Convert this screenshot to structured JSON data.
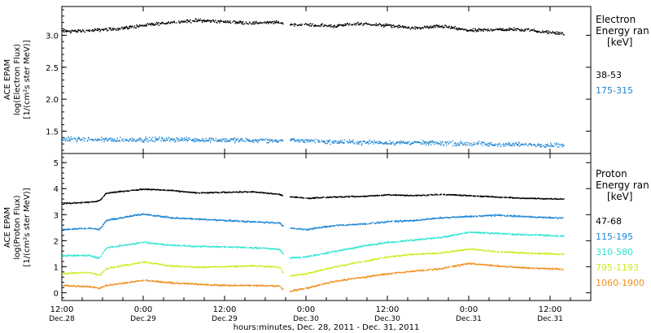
{
  "chart_data": [
    {
      "type": "scatter",
      "panel": "electron",
      "ylabel_lines": [
        "ACE EPAM",
        "log(Electron Flux)",
        "[1/(cm²s ster MeV)]"
      ],
      "ylim": [
        1.15,
        3.45
      ],
      "yticks": [
        1.5,
        2.0,
        2.5,
        3.0
      ],
      "ytick_labels": [
        "1.5",
        "2.0",
        "2.5",
        "3.0"
      ],
      "legend_title": [
        "Electron",
        "Energy ran",
        "[keV]"
      ],
      "gap": [
        44.6,
        45.6
      ],
      "series": [
        {
          "name": "38-53",
          "color": "#000000",
          "spread": 0.035,
          "points": [
            [
              12,
              3.07
            ],
            [
              16,
              3.08
            ],
            [
              20,
              3.11
            ],
            [
              24,
              3.16
            ],
            [
              28,
              3.21
            ],
            [
              32,
              3.24
            ],
            [
              36,
              3.22
            ],
            [
              40,
              3.2
            ],
            [
              44,
              3.21
            ],
            [
              45,
              3.18
            ],
            [
              48,
              3.17
            ],
            [
              52,
              3.15
            ],
            [
              56,
              3.19
            ],
            [
              60,
              3.16
            ],
            [
              64,
              3.12
            ],
            [
              68,
              3.15
            ],
            [
              72,
              3.08
            ],
            [
              76,
              3.1
            ],
            [
              80,
              3.1
            ],
            [
              84,
              3.05
            ],
            [
              86,
              3.03
            ]
          ]
        },
        {
          "name": "175-315",
          "color": "#1e86d4",
          "spread": 0.05,
          "points": [
            [
              12,
              1.38
            ],
            [
              20,
              1.37
            ],
            [
              28,
              1.38
            ],
            [
              36,
              1.37
            ],
            [
              44,
              1.36
            ],
            [
              45,
              1.37
            ],
            [
              52,
              1.34
            ],
            [
              60,
              1.33
            ],
            [
              68,
              1.32
            ],
            [
              76,
              1.3
            ],
            [
              86,
              1.29
            ]
          ]
        }
      ]
    },
    {
      "type": "scatter",
      "panel": "proton",
      "ylabel_lines": [
        "ACE EPAM",
        "log(Proton Flux)",
        "[1/(cm²s ster MeV)]"
      ],
      "ylim": [
        -0.3,
        5.35
      ],
      "yticks": [
        0,
        1,
        2,
        3,
        4,
        5
      ],
      "ytick_labels": [
        "0",
        "1",
        "2",
        "3",
        "4",
        "5"
      ],
      "legend_title": [
        "Proton",
        "Energy ran",
        "[keV]"
      ],
      "gap": [
        44.6,
        45.6
      ],
      "series": [
        {
          "name": "47-68",
          "color": "#000000",
          "spread": 0.03,
          "points": [
            [
              12,
              3.45
            ],
            [
              16,
              3.5
            ],
            [
              17.5,
              3.55
            ],
            [
              18.5,
              3.85
            ],
            [
              24,
              4.0
            ],
            [
              28,
              3.95
            ],
            [
              32,
              3.85
            ],
            [
              36,
              3.88
            ],
            [
              40,
              3.9
            ],
            [
              44,
              3.8
            ],
            [
              45,
              3.72
            ],
            [
              48,
              3.65
            ],
            [
              52,
              3.7
            ],
            [
              56,
              3.72
            ],
            [
              60,
              3.78
            ],
            [
              64,
              3.75
            ],
            [
              68,
              3.8
            ],
            [
              72,
              3.75
            ],
            [
              76,
              3.7
            ],
            [
              80,
              3.65
            ],
            [
              86,
              3.62
            ]
          ]
        },
        {
          "name": "115-195",
          "color": "#1e86d4",
          "spread": 0.04,
          "points": [
            [
              12,
              2.45
            ],
            [
              16,
              2.5
            ],
            [
              17.5,
              2.45
            ],
            [
              18.5,
              2.8
            ],
            [
              24,
              3.05
            ],
            [
              28,
              2.9
            ],
            [
              32,
              2.85
            ],
            [
              36,
              2.8
            ],
            [
              40,
              2.75
            ],
            [
              44,
              2.7
            ],
            [
              45,
              2.5
            ],
            [
              48,
              2.45
            ],
            [
              52,
              2.6
            ],
            [
              56,
              2.65
            ],
            [
              60,
              2.75
            ],
            [
              64,
              2.8
            ],
            [
              68,
              2.9
            ],
            [
              72,
              2.95
            ],
            [
              76,
              3.0
            ],
            [
              80,
              2.95
            ],
            [
              86,
              2.88
            ]
          ]
        },
        {
          "name": "310-580",
          "color": "#2ee6d2",
          "spread": 0.04,
          "points": [
            [
              12,
              1.45
            ],
            [
              16,
              1.45
            ],
            [
              17.5,
              1.35
            ],
            [
              18.5,
              1.75
            ],
            [
              24,
              1.95
            ],
            [
              28,
              1.85
            ],
            [
              32,
              1.8
            ],
            [
              36,
              1.78
            ],
            [
              40,
              1.75
            ],
            [
              44,
              1.7
            ],
            [
              45,
              1.35
            ],
            [
              48,
              1.4
            ],
            [
              52,
              1.6
            ],
            [
              56,
              1.8
            ],
            [
              60,
              1.95
            ],
            [
              64,
              2.05
            ],
            [
              68,
              2.15
            ],
            [
              72,
              2.35
            ],
            [
              76,
              2.3
            ],
            [
              80,
              2.25
            ],
            [
              86,
              2.2
            ]
          ]
        },
        {
          "name": "795-1193",
          "color": "#c8ee1e",
          "spread": 0.04,
          "points": [
            [
              12,
              0.75
            ],
            [
              16,
              0.8
            ],
            [
              17.5,
              0.7
            ],
            [
              18.5,
              0.95
            ],
            [
              24,
              1.2
            ],
            [
              28,
              1.05
            ],
            [
              32,
              1.0
            ],
            [
              36,
              1.02
            ],
            [
              40,
              1.05
            ],
            [
              44,
              1.0
            ],
            [
              45,
              0.65
            ],
            [
              48,
              0.75
            ],
            [
              52,
              1.0
            ],
            [
              56,
              1.2
            ],
            [
              60,
              1.4
            ],
            [
              64,
              1.5
            ],
            [
              68,
              1.55
            ],
            [
              72,
              1.7
            ],
            [
              76,
              1.6
            ],
            [
              80,
              1.55
            ],
            [
              86,
              1.5
            ]
          ]
        },
        {
          "name": "1060-1900",
          "color": "#f0901e",
          "spread": 0.04,
          "points": [
            [
              12,
              0.3
            ],
            [
              16,
              0.25
            ],
            [
              17.5,
              0.2
            ],
            [
              18.5,
              0.3
            ],
            [
              24,
              0.5
            ],
            [
              28,
              0.4
            ],
            [
              32,
              0.35
            ],
            [
              36,
              0.3
            ],
            [
              40,
              0.3
            ],
            [
              44,
              0.28
            ],
            [
              45,
              0.05
            ],
            [
              48,
              0.2
            ],
            [
              52,
              0.45
            ],
            [
              56,
              0.6
            ],
            [
              60,
              0.75
            ],
            [
              64,
              0.85
            ],
            [
              68,
              0.95
            ],
            [
              72,
              1.15
            ],
            [
              76,
              1.05
            ],
            [
              80,
              0.98
            ],
            [
              86,
              0.92
            ]
          ]
        }
      ]
    }
  ],
  "x_axis": {
    "xlim": [
      12,
      90
    ],
    "time_labels": [
      {
        "x": 12,
        "time": "12:00",
        "date": "Dec.28"
      },
      {
        "x": 24,
        "time": "0:00",
        "date": "Dec.29"
      },
      {
        "x": 36,
        "time": "12:00",
        "date": "Dec.29"
      },
      {
        "x": 48,
        "time": "0:00",
        "date": "Dec.30"
      },
      {
        "x": 60,
        "time": "12:00",
        "date": "Dec.30"
      },
      {
        "x": 72,
        "time": "0:00",
        "date": "Dec.31"
      },
      {
        "x": 84,
        "time": "12:00",
        "date": "Dec.31"
      }
    ],
    "xlabel": "hours:minutes, Dec. 28, 2011 - Dec. 31, 2011"
  }
}
